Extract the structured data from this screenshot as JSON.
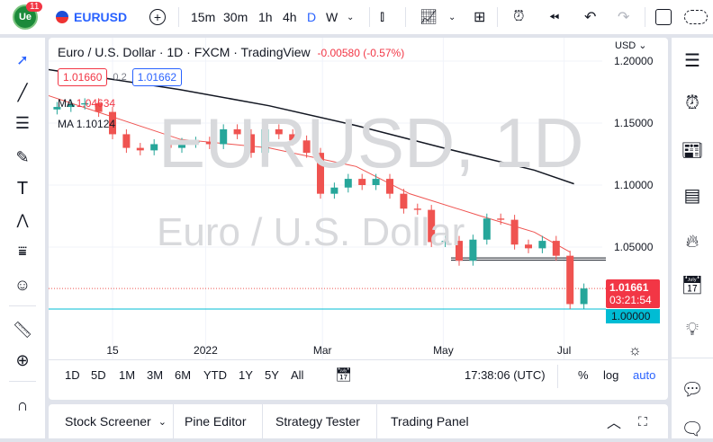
{
  "toolbar": {
    "notifications": "11",
    "symbol": "EURUSD",
    "intervals": [
      "15m",
      "30m",
      "1h",
      "4h",
      "D",
      "W"
    ],
    "active_interval": "D"
  },
  "legend": {
    "title": "Euro / U.S. Dollar · 1D · FXCM · TradingView",
    "change": "-0.00580 (-0.57%)",
    "bid": "1.01660",
    "spread": "0.2",
    "ask": "1.01662",
    "ma1_label": "MA",
    "ma1_value": "1.04634",
    "ma2_label": "MA",
    "ma2_value": "1.10124"
  },
  "watermark": {
    "symbol": "EURUSD, 1D",
    "name": "Euro / U.S. Dollar"
  },
  "currency": "USD",
  "price_tag": {
    "price": "1.01661",
    "countdown": "03:21:54",
    "level": "1.00000"
  },
  "ranges": [
    "1D",
    "5D",
    "1M",
    "3M",
    "6M",
    "YTD",
    "1Y",
    "5Y",
    "All"
  ],
  "footer": {
    "time": "17:38:06 (UTC)",
    "percent": "%",
    "log": "log",
    "auto": "auto"
  },
  "bottom_tabs": [
    "Stock Screener",
    "Pine Editor",
    "Strategy Tester",
    "Trading Panel"
  ],
  "colors": {
    "up": "#26a69a",
    "down": "#ef5350",
    "ma_fast": "#ef5350",
    "ma_slow": "#131722",
    "support": "#00bcd4",
    "accent": "#2962ff"
  },
  "chart_data": {
    "type": "candlestick",
    "y_ticks": [
      "1.20000",
      "1.15000",
      "1.10000",
      "1.05000"
    ],
    "ylim": [
      1.0,
      1.2
    ],
    "x_ticks": [
      {
        "label": "15",
        "date": "2021-11-15"
      },
      {
        "label": "2022",
        "date": "2022-01-01"
      },
      {
        "label": "Mar",
        "date": "2022-03-01"
      },
      {
        "label": "May",
        "date": "2022-05-01"
      },
      {
        "label": "Jul",
        "date": "2022-07-01"
      }
    ],
    "weekly_closes": [
      [
        "2021-10-18",
        1.163
      ],
      [
        "2021-10-25",
        1.165
      ],
      [
        "2021-11-01",
        1.166
      ],
      [
        "2021-11-08",
        1.159
      ],
      [
        "2021-11-15",
        1.141
      ],
      [
        "2021-11-22",
        1.13
      ],
      [
        "2021-11-29",
        1.128
      ],
      [
        "2021-12-06",
        1.133
      ],
      [
        "2021-12-13",
        1.13
      ],
      [
        "2021-12-20",
        1.134
      ],
      [
        "2021-12-27",
        1.135
      ],
      [
        "2022-01-03",
        1.133
      ],
      [
        "2022-01-10",
        1.145
      ],
      [
        "2022-01-17",
        1.141
      ],
      [
        "2022-01-24",
        1.126
      ],
      [
        "2022-01-31",
        1.145
      ],
      [
        "2022-02-07",
        1.141
      ],
      [
        "2022-02-14",
        1.136
      ],
      [
        "2022-02-21",
        1.126
      ],
      [
        "2022-02-28",
        1.093
      ],
      [
        "2022-03-07",
        1.098
      ],
      [
        "2022-03-14",
        1.105
      ],
      [
        "2022-03-21",
        1.1
      ],
      [
        "2022-03-28",
        1.105
      ],
      [
        "2022-04-04",
        1.093
      ],
      [
        "2022-04-11",
        1.081
      ],
      [
        "2022-04-18",
        1.08
      ],
      [
        "2022-04-25",
        1.054
      ],
      [
        "2022-05-02",
        1.055
      ],
      [
        "2022-05-09",
        1.039
      ],
      [
        "2022-05-16",
        1.056
      ],
      [
        "2022-05-23",
        1.073
      ],
      [
        "2022-05-30",
        1.072
      ],
      [
        "2022-06-06",
        1.052
      ],
      [
        "2022-06-13",
        1.049
      ],
      [
        "2022-06-20",
        1.055
      ],
      [
        "2022-06-27",
        1.043
      ],
      [
        "2022-07-04",
        1.004
      ],
      [
        "2022-07-11",
        1.0166
      ]
    ],
    "ma_fast": [
      [
        "2021-10-12",
        1.173
      ],
      [
        "2021-12-19",
        1.137
      ],
      [
        "2022-02-02",
        1.13
      ],
      [
        "2022-03-18",
        1.115
      ],
      [
        "2022-04-14",
        1.093
      ],
      [
        "2022-05-20",
        1.075
      ],
      [
        "2022-06-16",
        1.062
      ],
      [
        "2022-07-04",
        1.046
      ]
    ],
    "ma_slow": [
      [
        "2021-10-12",
        1.1935
      ],
      [
        "2021-12-19",
        1.177
      ],
      [
        "2022-02-02",
        1.164
      ],
      [
        "2022-03-18",
        1.148
      ],
      [
        "2022-05-01",
        1.13
      ],
      [
        "2022-06-16",
        1.112
      ],
      [
        "2022-07-06",
        1.101
      ]
    ],
    "hlines": [
      {
        "price": 1.0405,
        "color": "#131722"
      },
      {
        "price": 1.0,
        "color": "#00bcd4"
      },
      {
        "price": 1.0166,
        "color": "#ef5350",
        "style": "dotted"
      }
    ]
  }
}
